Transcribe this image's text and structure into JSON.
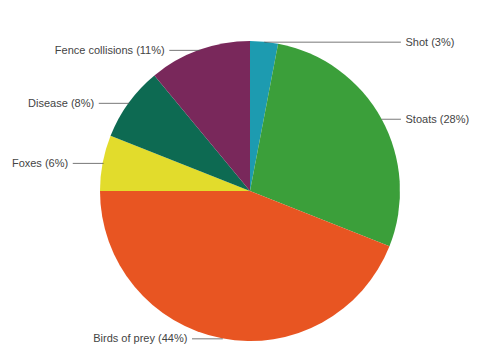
{
  "chart_data": {
    "type": "pie",
    "categories": [
      "Shot (3%)",
      "Stoats (28%)",
      "Birds of prey (44%)",
      "Foxes (6%)",
      "Disease (8%)",
      "Fence collisions (11%)"
    ],
    "values": [
      3,
      28,
      44,
      6,
      8,
      11
    ],
    "colors": [
      "#1d9bb0",
      "#3b9f3a",
      "#e85522",
      "#e2dc2c",
      "#0d6a52",
      "#79285b"
    ]
  }
}
